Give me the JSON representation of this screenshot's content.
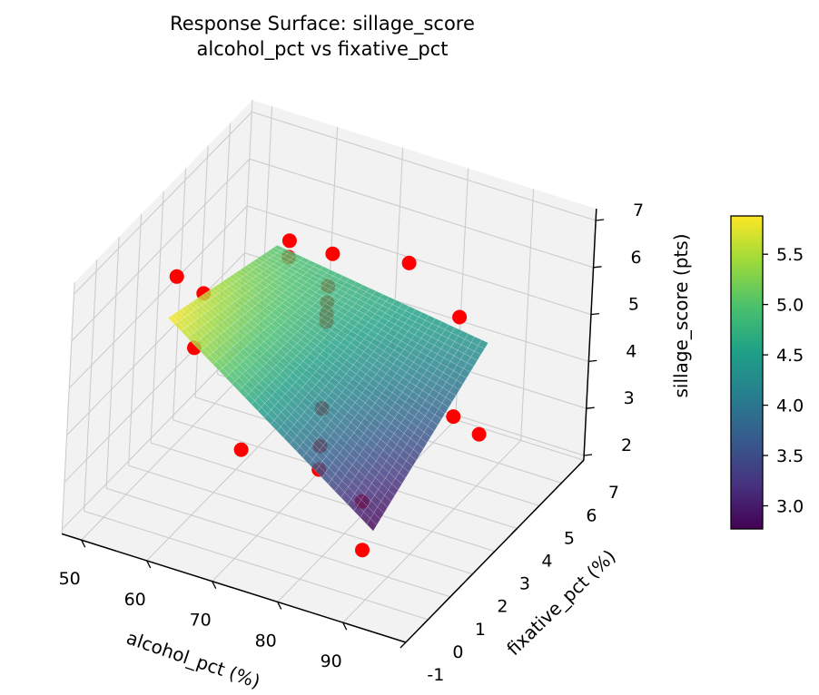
{
  "title": {
    "line1": "Response Surface: sillage_score",
    "line2": "alcohol_pct vs fixative_pct"
  },
  "axes": {
    "x": {
      "label": "alcohol_pct (%)",
      "ticks": [
        50,
        60,
        70,
        80,
        90
      ],
      "range": [
        47,
        99.6
      ]
    },
    "y": {
      "label": "fixative_pct (%)",
      "ticks": [
        -1,
        0,
        1,
        2,
        3,
        4,
        5,
        6,
        7
      ],
      "range": [
        -1,
        7
      ]
    },
    "z": {
      "label": "sillage_score (pts)",
      "ticks": [
        2,
        3,
        4,
        5,
        6,
        7
      ],
      "range": [
        1.9,
        7.25
      ]
    }
  },
  "colorbar": {
    "ticks": [
      3.0,
      3.5,
      4.0,
      4.5,
      5.0,
      5.5
    ],
    "vmin": 2.77,
    "vmax": 5.88,
    "colormap": "viridis"
  },
  "colors": {
    "pane": "#f2f2f2",
    "grid": "#cccccc",
    "spine": "#000000",
    "background": "#ffffff",
    "surface_mesh_line": "rgba(255,255,255,0.35)"
  },
  "chart_data": {
    "type": "3d-surface-scatter",
    "title": "Response Surface: sillage_score\nalcohol_pct vs fixative_pct",
    "xlabel": "alcohol_pct (%)",
    "ylabel": "fixative_pct (%)",
    "zlabel": "sillage_score (pts)",
    "surface": {
      "x_range": [
        55,
        87.5
      ],
      "y_range": [
        1,
        6
      ],
      "corner_z": {
        "x0y0": 5.88,
        "x0y1": 5.0,
        "x1y0": 2.77,
        "x1y1": 4.35
      },
      "alpha": 0.82,
      "mesh_steps": 32
    },
    "marker_color": "#ff0000",
    "marker_radius": 8,
    "points": [
      {
        "alcohol_pct": 56,
        "fixative_pct": 1,
        "sillage_score": 6.8
      },
      {
        "alcohol_pct": 57,
        "fixative_pct": 2,
        "sillage_score": 6.0
      },
      {
        "alcohol_pct": 60,
        "fixative_pct": 5,
        "sillage_score": 5.8
      },
      {
        "alcohol_pct": 65,
        "fixative_pct": 5.5,
        "sillage_score": 5.5
      },
      {
        "alcohol_pct": 75,
        "fixative_pct": 6,
        "sillage_score": 5.5
      },
      {
        "alcohol_pct": 83,
        "fixative_pct": 6,
        "sillage_score": 4.7
      },
      {
        "alcohol_pct": 67,
        "fixative_pct": 1,
        "sillage_score": 3.6
      },
      {
        "alcohol_pct": 86,
        "fixative_pct": 5,
        "sillage_score": 3.2
      },
      {
        "alcohol_pct": 90,
        "fixative_pct": 5,
        "sillage_score": 3.0
      },
      {
        "alcohol_pct": 86,
        "fixative_pct": 1,
        "sillage_score": 2.3
      },
      {
        "alcohol_pct": 56,
        "fixative_pct": 2,
        "sillage_score": 4.8
      },
      {
        "alcohol_pct": 60,
        "fixative_pct": 5,
        "sillage_score": 5.45
      },
      {
        "alcohol_pct": 72.5,
        "fixative_pct": 3,
        "sillage_score": 6.35
      },
      {
        "alcohol_pct": 72.5,
        "fixative_pct": 3,
        "sillage_score": 6.0
      },
      {
        "alcohol_pct": 72.5,
        "fixative_pct": 3,
        "sillage_score": 5.75
      },
      {
        "alcohol_pct": 72.5,
        "fixative_pct": 3,
        "sillage_score": 5.6
      },
      {
        "alcohol_pct": 72.5,
        "fixative_pct": 3,
        "sillage_score": 3.75
      },
      {
        "alcohol_pct": 72.5,
        "fixative_pct": 3,
        "sillage_score": 2.95
      },
      {
        "alcohol_pct": 72.5,
        "fixative_pct": 3,
        "sillage_score": 2.45
      },
      {
        "alcohol_pct": 84,
        "fixative_pct": 1.5,
        "sillage_score": 3.0
      }
    ]
  }
}
